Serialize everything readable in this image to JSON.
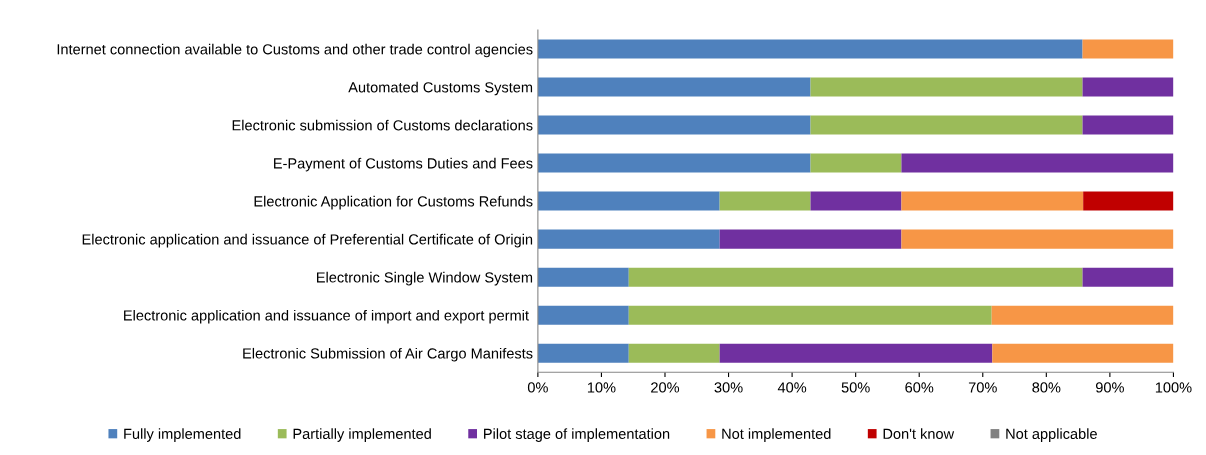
{
  "chart_data": {
    "type": "bar",
    "orientation": "horizontal",
    "stacked": true,
    "categories": [
      "Internet connection available to Customs and other trade control agencies",
      "Automated Customs System",
      "Electronic submission of Customs declarations",
      "E-Payment of Customs Duties and Fees",
      "Electronic Application for Customs Refunds",
      "Electronic application and issuance of Preferential Certificate of Origin",
      "Electronic Single Window System",
      "Electronic application and issuance of import and export permit ",
      "Electronic Submission of Air Cargo Manifests"
    ],
    "series": [
      {
        "name": "Fully implemented",
        "color": "#4f81bd",
        "values": [
          85.7,
          42.9,
          42.9,
          42.9,
          28.6,
          28.6,
          14.3,
          14.3,
          14.3
        ]
      },
      {
        "name": "Partially implemented",
        "color": "#9bbb59",
        "values": [
          0,
          42.8,
          42.8,
          14.3,
          14.3,
          0,
          71.4,
          57.1,
          14.3
        ]
      },
      {
        "name": "Pilot stage of implementation",
        "color": "#7030a0",
        "values": [
          0,
          14.3,
          14.3,
          42.8,
          14.3,
          28.6,
          14.3,
          0,
          42.9
        ]
      },
      {
        "name": "Not implemented",
        "color": "#f79646",
        "values": [
          14.3,
          0,
          0,
          0,
          28.6,
          42.8,
          0,
          28.6,
          28.5
        ]
      },
      {
        "name": "Don't know",
        "color": "#c00000",
        "values": [
          0,
          0,
          0,
          0,
          14.2,
          0,
          0,
          0,
          0
        ]
      },
      {
        "name": "Not applicable",
        "color": "#808080",
        "values": [
          0,
          0,
          0,
          0,
          0,
          0,
          0,
          0,
          0
        ]
      }
    ],
    "xlim": [
      0,
      100
    ],
    "xticks": [
      {
        "value": 0,
        "label": "0%"
      },
      {
        "value": 10,
        "label": "10%"
      },
      {
        "value": 20,
        "label": "20%"
      },
      {
        "value": 30,
        "label": "30%"
      },
      {
        "value": 40,
        "label": "40%"
      },
      {
        "value": 50,
        "label": "50%"
      },
      {
        "value": 60,
        "label": "60%"
      },
      {
        "value": 70,
        "label": "70%"
      },
      {
        "value": 80,
        "label": "80%"
      },
      {
        "value": 90,
        "label": "90%"
      },
      {
        "value": 100,
        "label": "100%"
      }
    ],
    "grid": false,
    "legend": "bottom"
  }
}
